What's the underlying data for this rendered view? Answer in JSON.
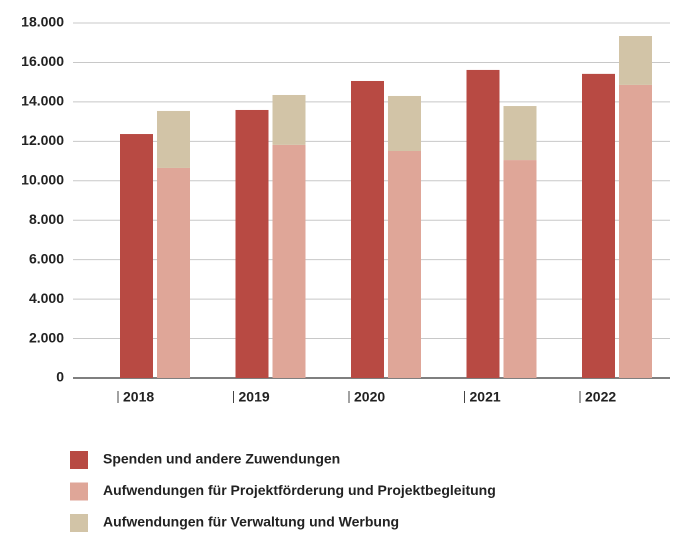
{
  "chart_data": {
    "type": "grouped-stacked-bar",
    "categories": [
      "2018",
      "2019",
      "2020",
      "2021",
      "2022"
    ],
    "series": [
      {
        "name": "Spenden und andere Zuwendungen",
        "color": "#b84a43",
        "values": [
          12370,
          13590,
          15060,
          15620,
          15420
        ],
        "stack": 0
      },
      {
        "name": "Aufwendungen für Projektförderung und Projektbegleitung",
        "color": "#dfa698",
        "values": [
          10650,
          11820,
          11510,
          11050,
          14860
        ],
        "stack": 1
      },
      {
        "name": "Aufwendungen für Verwaltung und Werbung",
        "color": "#d2c4a7",
        "values": [
          2890,
          2530,
          2790,
          2740,
          2480
        ],
        "stack": 1
      }
    ],
    "ylim": [
      0,
      18000
    ],
    "yticks": [
      0,
      {
        "value": 2000,
        "label": "2.000"
      },
      {
        "value": 4000,
        "label": "4.000"
      },
      {
        "value": 6000,
        "label": "6.000"
      },
      {
        "value": 8000,
        "label": "8.000"
      },
      {
        "value": 10000,
        "label": "10.000"
      },
      {
        "value": 12000,
        "label": "12.000"
      },
      {
        "value": 14000,
        "label": "14.000"
      },
      {
        "value": 16000,
        "label": "16.000"
      },
      {
        "value": 18000,
        "label": "18.000"
      }
    ],
    "grid": true,
    "legend": "bottom-left"
  }
}
